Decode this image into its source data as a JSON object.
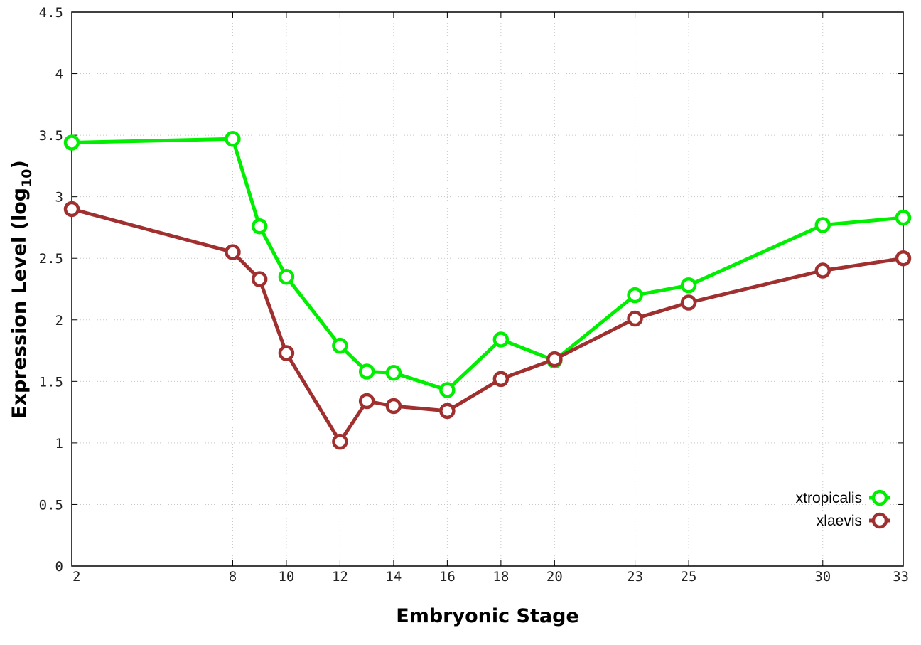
{
  "chart_data": {
    "type": "line",
    "title": "",
    "xlabel": "Embryonic Stage",
    "ylabel_main": "Expression Level (log",
    "ylabel_sub": "10",
    "ylabel_close": ")",
    "xlim": [
      2,
      33
    ],
    "ylim": [
      0,
      4.5
    ],
    "x_ticks": [
      2,
      8,
      10,
      12,
      14,
      16,
      18,
      20,
      23,
      25,
      30,
      33
    ],
    "x_tick_labels": [
      "2",
      "8",
      "10",
      "12",
      "14",
      "16",
      "18",
      "20",
      "23",
      "25",
      "30",
      "33"
    ],
    "y_ticks": [
      0,
      0.5,
      1,
      1.5,
      2,
      2.5,
      3,
      3.5,
      4,
      4.5
    ],
    "y_tick_labels": [
      "0",
      "0.5",
      "1",
      "1.5",
      "2",
      "2.5",
      "3",
      "3.5",
      "4",
      "4.5"
    ],
    "grid": true,
    "legend_position": "bottom-right",
    "x": [
      2,
      8,
      9,
      10,
      12,
      13,
      14,
      16,
      18,
      20,
      23,
      25,
      30,
      33
    ],
    "series": [
      {
        "name": "xtropicalis",
        "color": "#00ee00",
        "values": [
          3.44,
          3.47,
          2.76,
          2.35,
          1.79,
          1.58,
          1.57,
          1.43,
          1.84,
          1.67,
          2.2,
          2.28,
          2.77,
          2.83
        ]
      },
      {
        "name": "xlaevis",
        "color": "#a03030",
        "values": [
          2.9,
          2.55,
          2.33,
          1.73,
          1.01,
          1.34,
          1.3,
          1.26,
          1.52,
          1.68,
          2.01,
          2.14,
          2.4,
          2.5
        ]
      }
    ]
  }
}
